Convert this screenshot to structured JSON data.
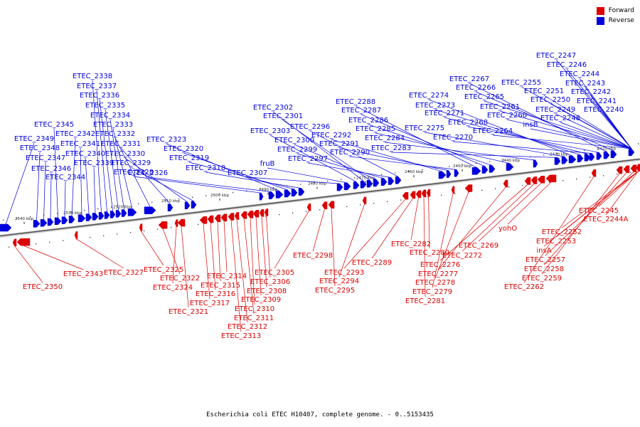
{
  "colors": {
    "forward": "#dd0000",
    "reverse": "#0000dd",
    "axis": "#777777",
    "tick": "#222222"
  },
  "legend": {
    "forward": "Forward",
    "reverse": "Reverse"
  },
  "caption": "Escherichia coli ETEC H10407, complete genome. - 0..5153435",
  "tick_labels": [
    "2540 kbp",
    "2530 kbp",
    "2520 kbp",
    "2510 kbp",
    "2500 kbp",
    "2490 kbp",
    "2480 kbp",
    "2470 kbp",
    "2460 kbp",
    "2450 kbp",
    "2440 kbp",
    "2430 kbp",
    "2420 kbp"
  ],
  "reverse_genes": [
    "ETEC_2349",
    "ETEC_2348",
    "ETEC_2347",
    "ETEC_2346",
    "ETEC_2345",
    "ETEC_2344",
    "ETEC_2342",
    "ETEC_2341",
    "ETEC_2340",
    "ETEC_2339",
    "ETEC_2338",
    "ETEC_2337",
    "ETEC_2336",
    "ETEC_2335",
    "ETEC_2334",
    "ETEC_2333",
    "ETEC_2332",
    "ETEC_2331",
    "ETEC_2330",
    "ETEC_2329",
    "ETEC_2328",
    "ETEC_2326",
    "ETEC_2323",
    "ETEC_2320",
    "ETEC_2319",
    "ETEC_2318",
    "ETEC_2307",
    "fruB",
    "ETEC_2303",
    "ETEC_2302",
    "ETEC_2301",
    "ETEC_2300",
    "ETEC_2299",
    "ETEC_2297",
    "ETEC_2296",
    "ETEC_2292",
    "ETEC_2291",
    "ETEC_2290",
    "ETEC_2288",
    "ETEC_2287",
    "ETEC_2286",
    "ETEC_2285",
    "ETEC_2284",
    "ETEC_2283",
    "ETEC_2275",
    "ETEC_2274",
    "ETEC_2273",
    "ETEC_2271",
    "ETEC_2270",
    "ETEC_2268",
    "ETEC_2267",
    "ETEC_2266",
    "ETEC_2265",
    "ETEC_2264",
    "ETEC_2261",
    "ETEC_2260",
    "insB",
    "ETEC_2255",
    "ETEC_2251",
    "ETEC_2250",
    "ETEC_2249",
    "ETEC_2248",
    "ETEC_2247",
    "ETEC_2246",
    "ETEC_2244",
    "ETEC_2243",
    "ETEC_2242",
    "ETEC_2241",
    "ETEC_2240"
  ],
  "forward_genes": [
    "ETEC_2350",
    "ETEC_2343",
    "ETEC_2327",
    "ETEC_2325",
    "ETEC_2322",
    "ETEC_2324",
    "ETEC_2321",
    "ETEC_2317",
    "ETEC_2316",
    "ETEC_2315",
    "ETEC_2314",
    "ETEC_2313",
    "ETEC_2312",
    "ETEC_2311",
    "ETEC_2310",
    "ETEC_2309",
    "ETEC_2308",
    "ETEC_2306",
    "ETEC_2305",
    "ETEC_2298",
    "ETEC_2295",
    "ETEC_2294",
    "ETEC_2293",
    "ETEC_2289",
    "ETEC_2282",
    "ETEC_2281",
    "ETEC_2280",
    "ETEC_2279",
    "ETEC_2278",
    "ETEC_2277",
    "ETEC_2276",
    "ETEC_2272",
    "ETEC_2269",
    "yohO",
    "ETEC_2262",
    "ETEC_2259",
    "ETEC_2258",
    "ETEC_2257",
    "insA",
    "ETEC_2253",
    "ETEC_2252",
    "ETEC_2245",
    "ETEC_2244A"
  ]
}
